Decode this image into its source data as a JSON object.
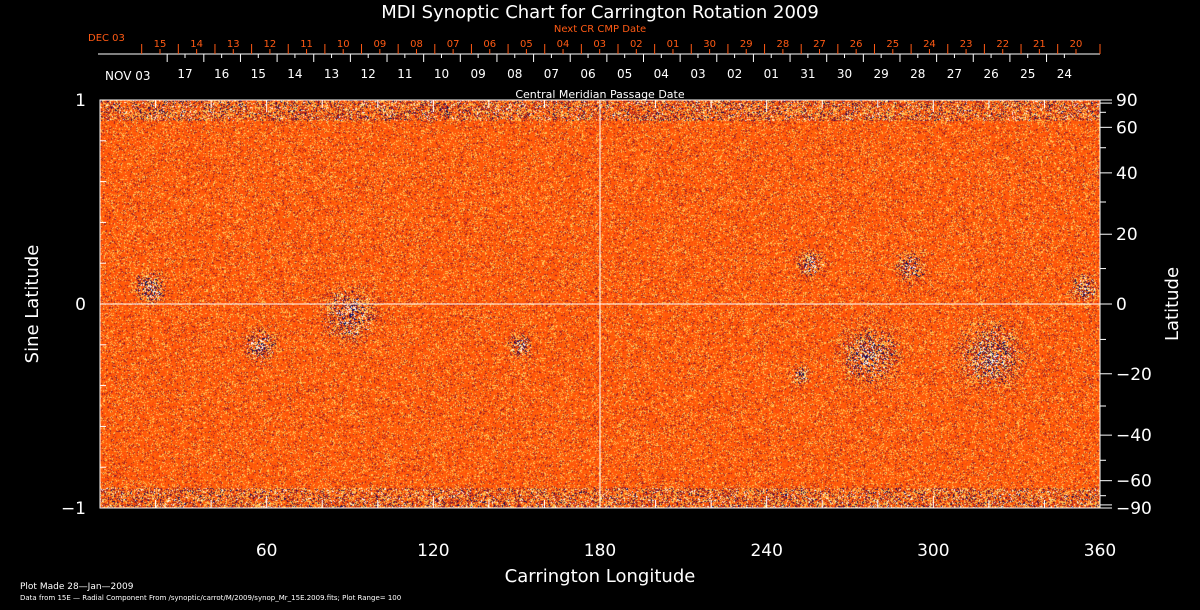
{
  "chart_data": {
    "type": "heatmap",
    "title": "MDI Synoptic Chart for Carrington Rotation 2009",
    "xlabel": "Carrington Longitude",
    "ylabel_left": "Sine Latitude",
    "ylabel_right": "Latitude",
    "xlim": [
      0,
      360
    ],
    "ylim": [
      -1,
      1
    ],
    "x_ticks": [
      "60",
      "120",
      "180",
      "240",
      "300",
      "360"
    ],
    "y_ticks_left": [
      "1",
      "0",
      "−1"
    ],
    "y_ticks_right": [
      "90",
      "60",
      "40",
      "20",
      "0",
      "−20",
      "−40",
      "−60",
      "−90"
    ],
    "top_axis_next": {
      "title": "Next CR CMP Date",
      "start_label": "DEC 03",
      "labels": [
        "15",
        "14",
        "13",
        "12",
        "11",
        "10",
        "09",
        "08",
        "07",
        "06",
        "05",
        "04",
        "03",
        "02",
        "01",
        "30",
        "29",
        "28",
        "27",
        "26",
        "25",
        "24",
        "23",
        "22",
        "21",
        "20"
      ]
    },
    "top_axis_cmp": {
      "title": "Central Meridian Passage Date",
      "start_label": "NOV 03",
      "labels": [
        "17",
        "16",
        "15",
        "14",
        "13",
        "12",
        "11",
        "10",
        "09",
        "08",
        "07",
        "06",
        "05",
        "04",
        "03",
        "02",
        "01",
        "31",
        "30",
        "29",
        "28",
        "27",
        "26",
        "25",
        "24"
      ]
    },
    "plot_range": 100,
    "colors": {
      "background": "#ff5a14",
      "positive": "#ffffff",
      "negative": "#0a0a6e",
      "next_axis": "#ff5a14"
    }
  },
  "footer": {
    "made": "Plot Made 28—Jan—2009",
    "source": "Data from 15E — Radial Component From /synoptic/carrot/M/2009/synop_Mr_15E.2009.fits; Plot Range=  100"
  }
}
